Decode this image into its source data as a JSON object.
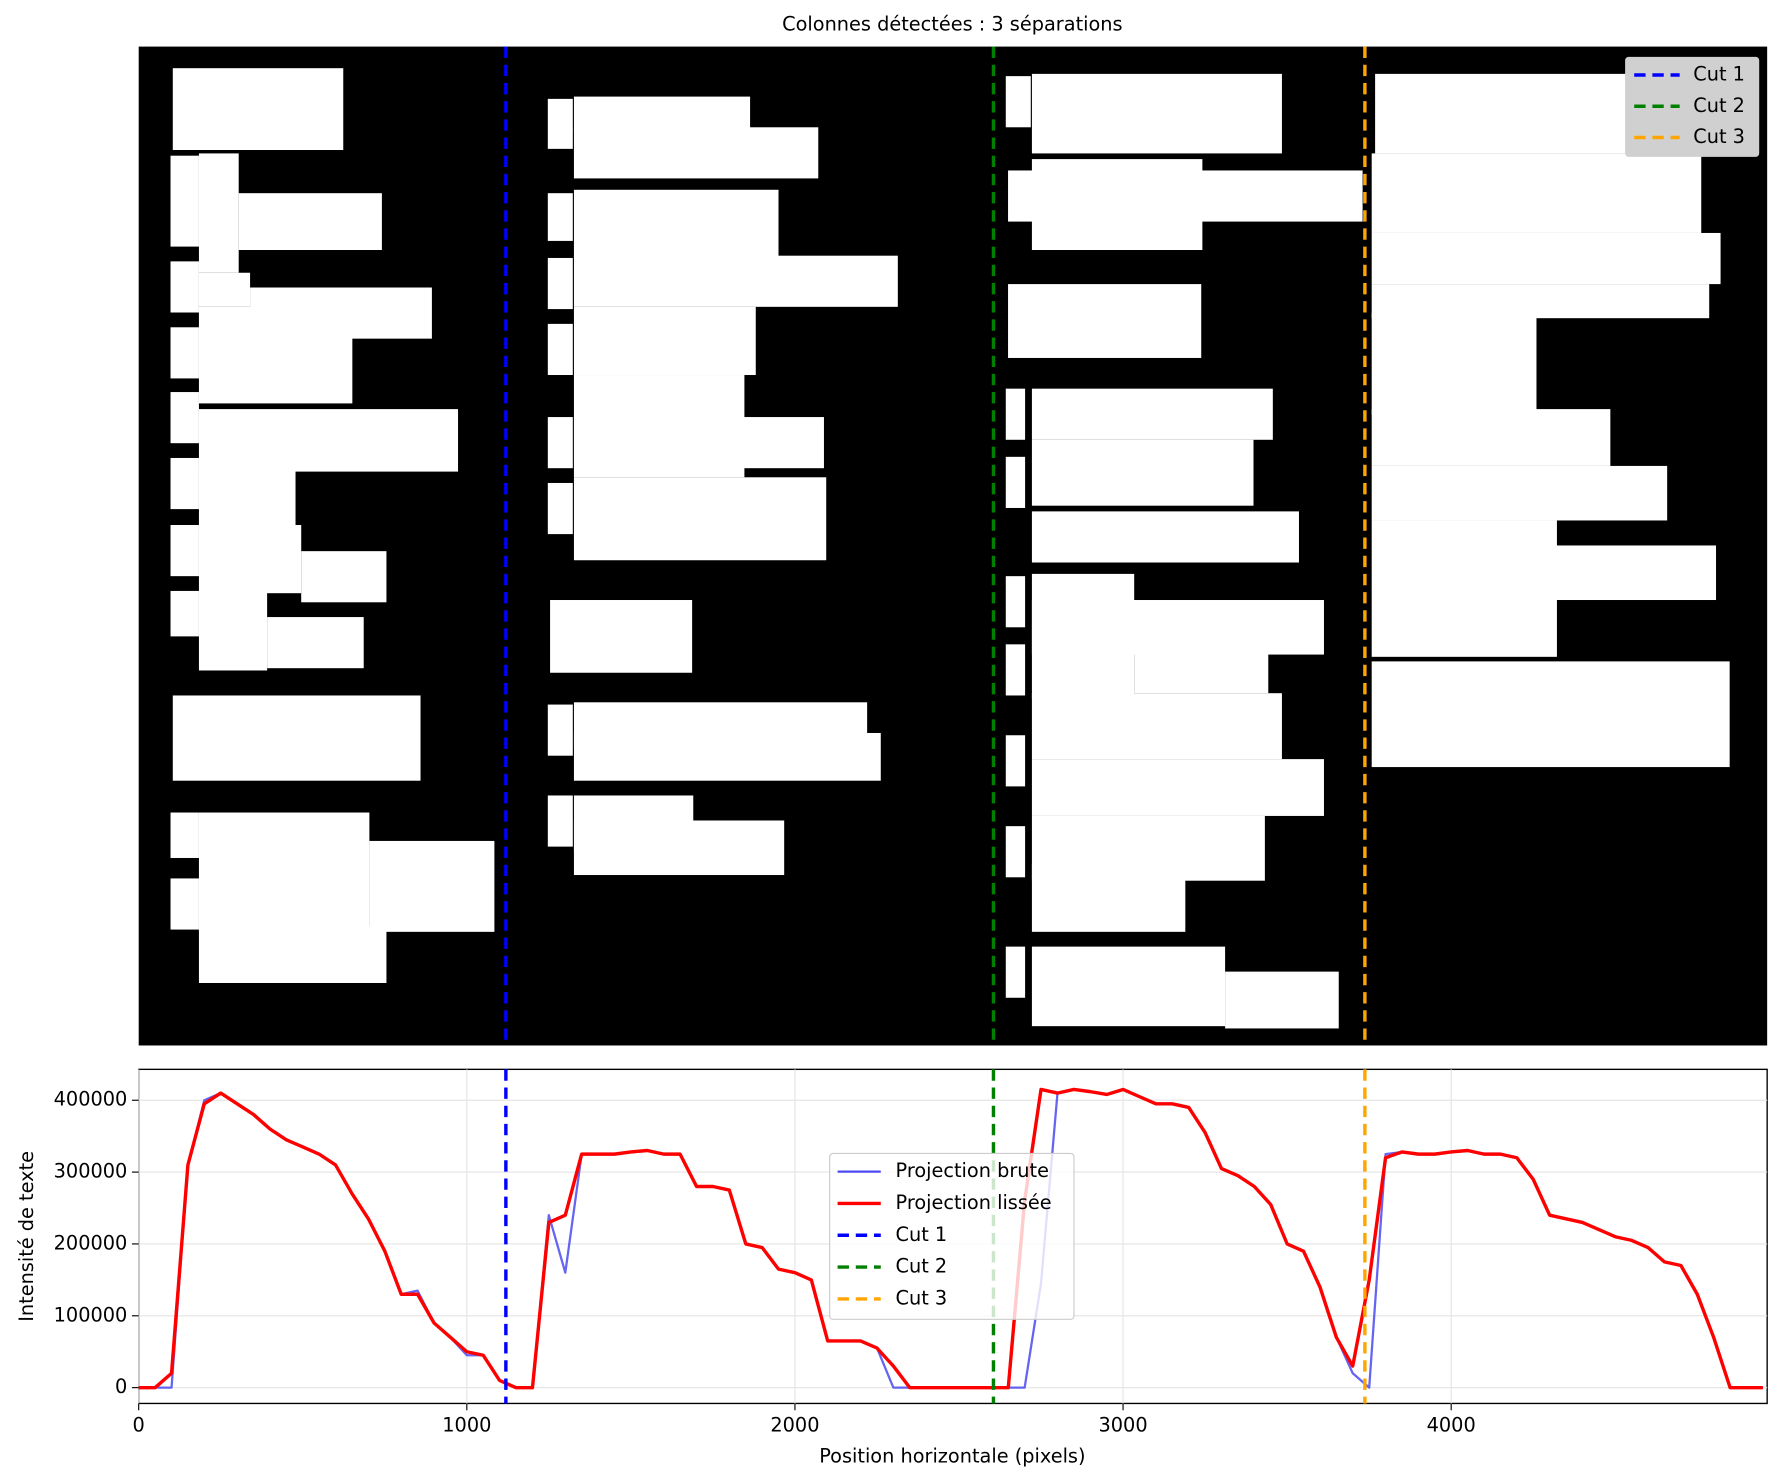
{
  "chart_data": {
    "type": "line",
    "title": "Colonnes détectées : 3 séparations",
    "xlabel": "Position horizontale (pixels)",
    "ylabel": "Intensité de texte",
    "xlim": [
      0,
      4963
    ],
    "ylim": [
      -22000,
      443000
    ],
    "xticks": [
      0,
      1000,
      2000,
      3000,
      4000
    ],
    "yticks": [
      0,
      100000,
      200000,
      300000,
      400000
    ],
    "grid": true,
    "legend": "center",
    "x": [
      0,
      50,
      100,
      150,
      200,
      250,
      300,
      350,
      400,
      450,
      500,
      550,
      600,
      650,
      700,
      750,
      800,
      850,
      900,
      950,
      1000,
      1050,
      1100,
      1150,
      1200,
      1250,
      1300,
      1350,
      1400,
      1450,
      1500,
      1550,
      1600,
      1650,
      1700,
      1750,
      1800,
      1850,
      1900,
      1950,
      2000,
      2050,
      2100,
      2150,
      2200,
      2250,
      2300,
      2350,
      2400,
      2450,
      2500,
      2550,
      2600,
      2650,
      2700,
      2750,
      2800,
      2850,
      2900,
      2950,
      3000,
      3050,
      3100,
      3150,
      3200,
      3250,
      3300,
      3350,
      3400,
      3450,
      3500,
      3550,
      3600,
      3650,
      3700,
      3750,
      3800,
      3850,
      3900,
      3950,
      4000,
      4050,
      4100,
      4150,
      4200,
      4250,
      4300,
      4350,
      4400,
      4450,
      4500,
      4550,
      4600,
      4650,
      4700,
      4750,
      4800,
      4850,
      4900,
      4950
    ],
    "series": [
      {
        "name": "Projection brute",
        "color": "#4a4af0",
        "values": [
          0,
          0,
          0,
          310,
          400,
          410,
          395,
          380,
          360,
          345,
          335,
          325,
          310,
          270,
          235,
          190,
          130,
          135,
          90,
          70,
          45,
          45,
          10,
          0,
          0,
          240,
          160,
          325,
          325,
          325,
          328,
          330,
          325,
          325,
          280,
          280,
          275,
          200,
          195,
          165,
          160,
          150,
          65,
          65,
          65,
          55,
          0,
          0,
          0,
          0,
          0,
          0,
          0,
          0,
          0,
          145,
          410,
          415,
          412,
          408,
          415,
          405,
          395,
          395,
          390,
          355,
          305,
          295,
          280,
          255,
          200,
          190,
          140,
          70,
          20,
          0,
          325,
          328,
          325,
          325,
          328,
          330,
          325,
          325,
          320,
          290,
          240,
          235,
          230,
          220,
          210,
          205,
          195,
          175,
          170,
          130,
          70,
          0,
          0,
          0
        ]
      },
      {
        "name": "Projection lissée",
        "color": "red",
        "values": [
          0,
          0,
          20,
          310,
          395,
          410,
          395,
          380,
          360,
          345,
          335,
          325,
          310,
          270,
          235,
          190,
          130,
          130,
          90,
          70,
          50,
          45,
          10,
          0,
          0,
          230,
          240,
          325,
          325,
          325,
          328,
          330,
          325,
          325,
          280,
          280,
          275,
          200,
          195,
          165,
          160,
          150,
          65,
          65,
          65,
          55,
          30,
          0,
          0,
          0,
          0,
          0,
          0,
          0,
          260,
          415,
          410,
          415,
          412,
          408,
          415,
          405,
          395,
          395,
          390,
          355,
          305,
          295,
          280,
          255,
          200,
          190,
          140,
          70,
          30,
          150,
          320,
          328,
          325,
          325,
          328,
          330,
          325,
          325,
          320,
          290,
          240,
          235,
          230,
          220,
          210,
          205,
          195,
          175,
          170,
          130,
          70,
          0,
          0,
          0
        ]
      }
    ],
    "value_scale": 1000,
    "cuts": [
      {
        "name": "Cut 1",
        "x": 1119,
        "color": "blue"
      },
      {
        "name": "Cut 2",
        "x": 2605,
        "color": "green"
      },
      {
        "name": "Cut 3",
        "x": 3737,
        "color": "orange"
      }
    ]
  }
}
